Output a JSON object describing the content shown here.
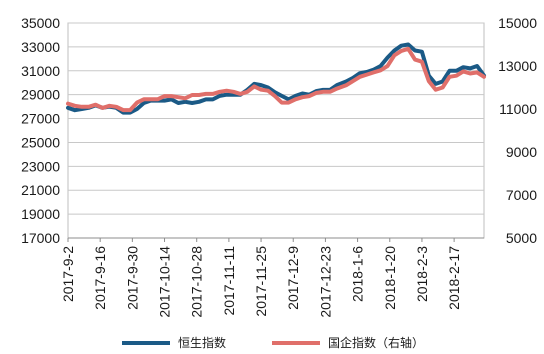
{
  "chart_data": {
    "type": "line",
    "title": "",
    "xlabel": "",
    "ylabel_left": "",
    "ylabel_right": "",
    "ylim_left": [
      17000,
      35000
    ],
    "ylim_right": [
      5000,
      15000
    ],
    "yticks_left": [
      17000,
      19000,
      21000,
      23000,
      25000,
      27000,
      29000,
      31000,
      33000,
      35000
    ],
    "yticks_right": [
      5000,
      7000,
      9000,
      11000,
      13000,
      15000
    ],
    "x_range": [
      "2017-09-02",
      "2018-03-02"
    ],
    "x_ticks": [
      "2017-9-2",
      "2017-9-16",
      "2017-9-30",
      "2017-10-14",
      "2017-10-28",
      "2017-11-11",
      "2017-11-25",
      "2017-12-9",
      "2017-12-23",
      "2018-1-6",
      "2018-1-20",
      "2018-2-3",
      "2018-2-17"
    ],
    "grid": true,
    "legend_position": "bottom",
    "series": [
      {
        "name": "恒生指数",
        "axis": "left",
        "color": "#1b5a86",
        "points": [
          [
            "2017-09-02",
            27900
          ],
          [
            "2017-09-05",
            27700
          ],
          [
            "2017-09-08",
            27800
          ],
          [
            "2017-09-11",
            27900
          ],
          [
            "2017-09-14",
            28100
          ],
          [
            "2017-09-17",
            27900
          ],
          [
            "2017-09-20",
            28000
          ],
          [
            "2017-09-23",
            27900
          ],
          [
            "2017-09-26",
            27500
          ],
          [
            "2017-09-29",
            27500
          ],
          [
            "2017-10-02",
            27800
          ],
          [
            "2017-10-05",
            28300
          ],
          [
            "2017-10-08",
            28500
          ],
          [
            "2017-10-11",
            28500
          ],
          [
            "2017-10-14",
            28500
          ],
          [
            "2017-10-17",
            28600
          ],
          [
            "2017-10-20",
            28300
          ],
          [
            "2017-10-23",
            28400
          ],
          [
            "2017-10-26",
            28300
          ],
          [
            "2017-10-29",
            28400
          ],
          [
            "2017-11-01",
            28600
          ],
          [
            "2017-11-04",
            28600
          ],
          [
            "2017-11-07",
            28900
          ],
          [
            "2017-11-10",
            29000
          ],
          [
            "2017-11-13",
            29000
          ],
          [
            "2017-11-16",
            29000
          ],
          [
            "2017-11-19",
            29400
          ],
          [
            "2017-11-22",
            29900
          ],
          [
            "2017-11-25",
            29800
          ],
          [
            "2017-11-28",
            29600
          ],
          [
            "2017-12-01",
            29200
          ],
          [
            "2017-12-04",
            28900
          ],
          [
            "2017-12-07",
            28600
          ],
          [
            "2017-12-10",
            28900
          ],
          [
            "2017-12-13",
            29100
          ],
          [
            "2017-12-16",
            29000
          ],
          [
            "2017-12-19",
            29300
          ],
          [
            "2017-12-22",
            29400
          ],
          [
            "2017-12-25",
            29400
          ],
          [
            "2017-12-28",
            29800
          ],
          [
            "2018-01-01",
            30100
          ],
          [
            "2018-01-04",
            30400
          ],
          [
            "2018-01-07",
            30800
          ],
          [
            "2018-01-10",
            30900
          ],
          [
            "2018-01-13",
            31100
          ],
          [
            "2018-01-16",
            31400
          ],
          [
            "2018-01-19",
            32100
          ],
          [
            "2018-01-22",
            32700
          ],
          [
            "2018-01-25",
            33100
          ],
          [
            "2018-01-28",
            33200
          ],
          [
            "2018-01-31",
            32700
          ],
          [
            "2018-02-03",
            32600
          ],
          [
            "2018-02-06",
            30600
          ],
          [
            "2018-02-09",
            29900
          ],
          [
            "2018-02-12",
            30100
          ],
          [
            "2018-02-15",
            31000
          ],
          [
            "2018-02-18",
            31000
          ],
          [
            "2018-02-21",
            31300
          ],
          [
            "2018-02-24",
            31200
          ],
          [
            "2018-02-27",
            31400
          ],
          [
            "2018-03-02",
            30600
          ]
        ]
      },
      {
        "name": "国企指数（右轴）",
        "axis": "right",
        "color": "#e06f6a",
        "points": [
          [
            "2017-09-02",
            11250
          ],
          [
            "2017-09-05",
            11150
          ],
          [
            "2017-09-08",
            11100
          ],
          [
            "2017-09-11",
            11100
          ],
          [
            "2017-09-14",
            11200
          ],
          [
            "2017-09-17",
            11050
          ],
          [
            "2017-09-20",
            11150
          ],
          [
            "2017-09-23",
            11100
          ],
          [
            "2017-09-26",
            10950
          ],
          [
            "2017-09-29",
            10950
          ],
          [
            "2017-10-02",
            11300
          ],
          [
            "2017-10-05",
            11450
          ],
          [
            "2017-10-08",
            11450
          ],
          [
            "2017-10-11",
            11450
          ],
          [
            "2017-10-14",
            11600
          ],
          [
            "2017-10-17",
            11600
          ],
          [
            "2017-10-20",
            11550
          ],
          [
            "2017-10-23",
            11500
          ],
          [
            "2017-10-26",
            11650
          ],
          [
            "2017-10-29",
            11650
          ],
          [
            "2017-11-01",
            11700
          ],
          [
            "2017-11-04",
            11700
          ],
          [
            "2017-11-07",
            11800
          ],
          [
            "2017-11-10",
            11850
          ],
          [
            "2017-11-13",
            11800
          ],
          [
            "2017-11-16",
            11700
          ],
          [
            "2017-11-19",
            11800
          ],
          [
            "2017-11-22",
            12050
          ],
          [
            "2017-11-25",
            11900
          ],
          [
            "2017-11-28",
            11850
          ],
          [
            "2017-12-01",
            11600
          ],
          [
            "2017-12-04",
            11300
          ],
          [
            "2017-12-07",
            11300
          ],
          [
            "2017-12-10",
            11450
          ],
          [
            "2017-12-13",
            11550
          ],
          [
            "2017-12-16",
            11600
          ],
          [
            "2017-12-19",
            11750
          ],
          [
            "2017-12-22",
            11800
          ],
          [
            "2017-12-25",
            11800
          ],
          [
            "2017-12-28",
            11950
          ],
          [
            "2018-01-01",
            12100
          ],
          [
            "2018-01-04",
            12300
          ],
          [
            "2018-01-07",
            12500
          ],
          [
            "2018-01-10",
            12600
          ],
          [
            "2018-01-13",
            12700
          ],
          [
            "2018-01-16",
            12800
          ],
          [
            "2018-01-19",
            13000
          ],
          [
            "2018-01-22",
            13500
          ],
          [
            "2018-01-25",
            13700
          ],
          [
            "2018-01-28",
            13800
          ],
          [
            "2018-01-31",
            13300
          ],
          [
            "2018-02-03",
            13200
          ],
          [
            "2018-02-06",
            12300
          ],
          [
            "2018-02-09",
            11900
          ],
          [
            "2018-02-12",
            12000
          ],
          [
            "2018-02-15",
            12500
          ],
          [
            "2018-02-18",
            12550
          ],
          [
            "2018-02-21",
            12750
          ],
          [
            "2018-02-24",
            12650
          ],
          [
            "2018-02-27",
            12700
          ],
          [
            "2018-03-02",
            12500
          ]
        ]
      }
    ]
  }
}
